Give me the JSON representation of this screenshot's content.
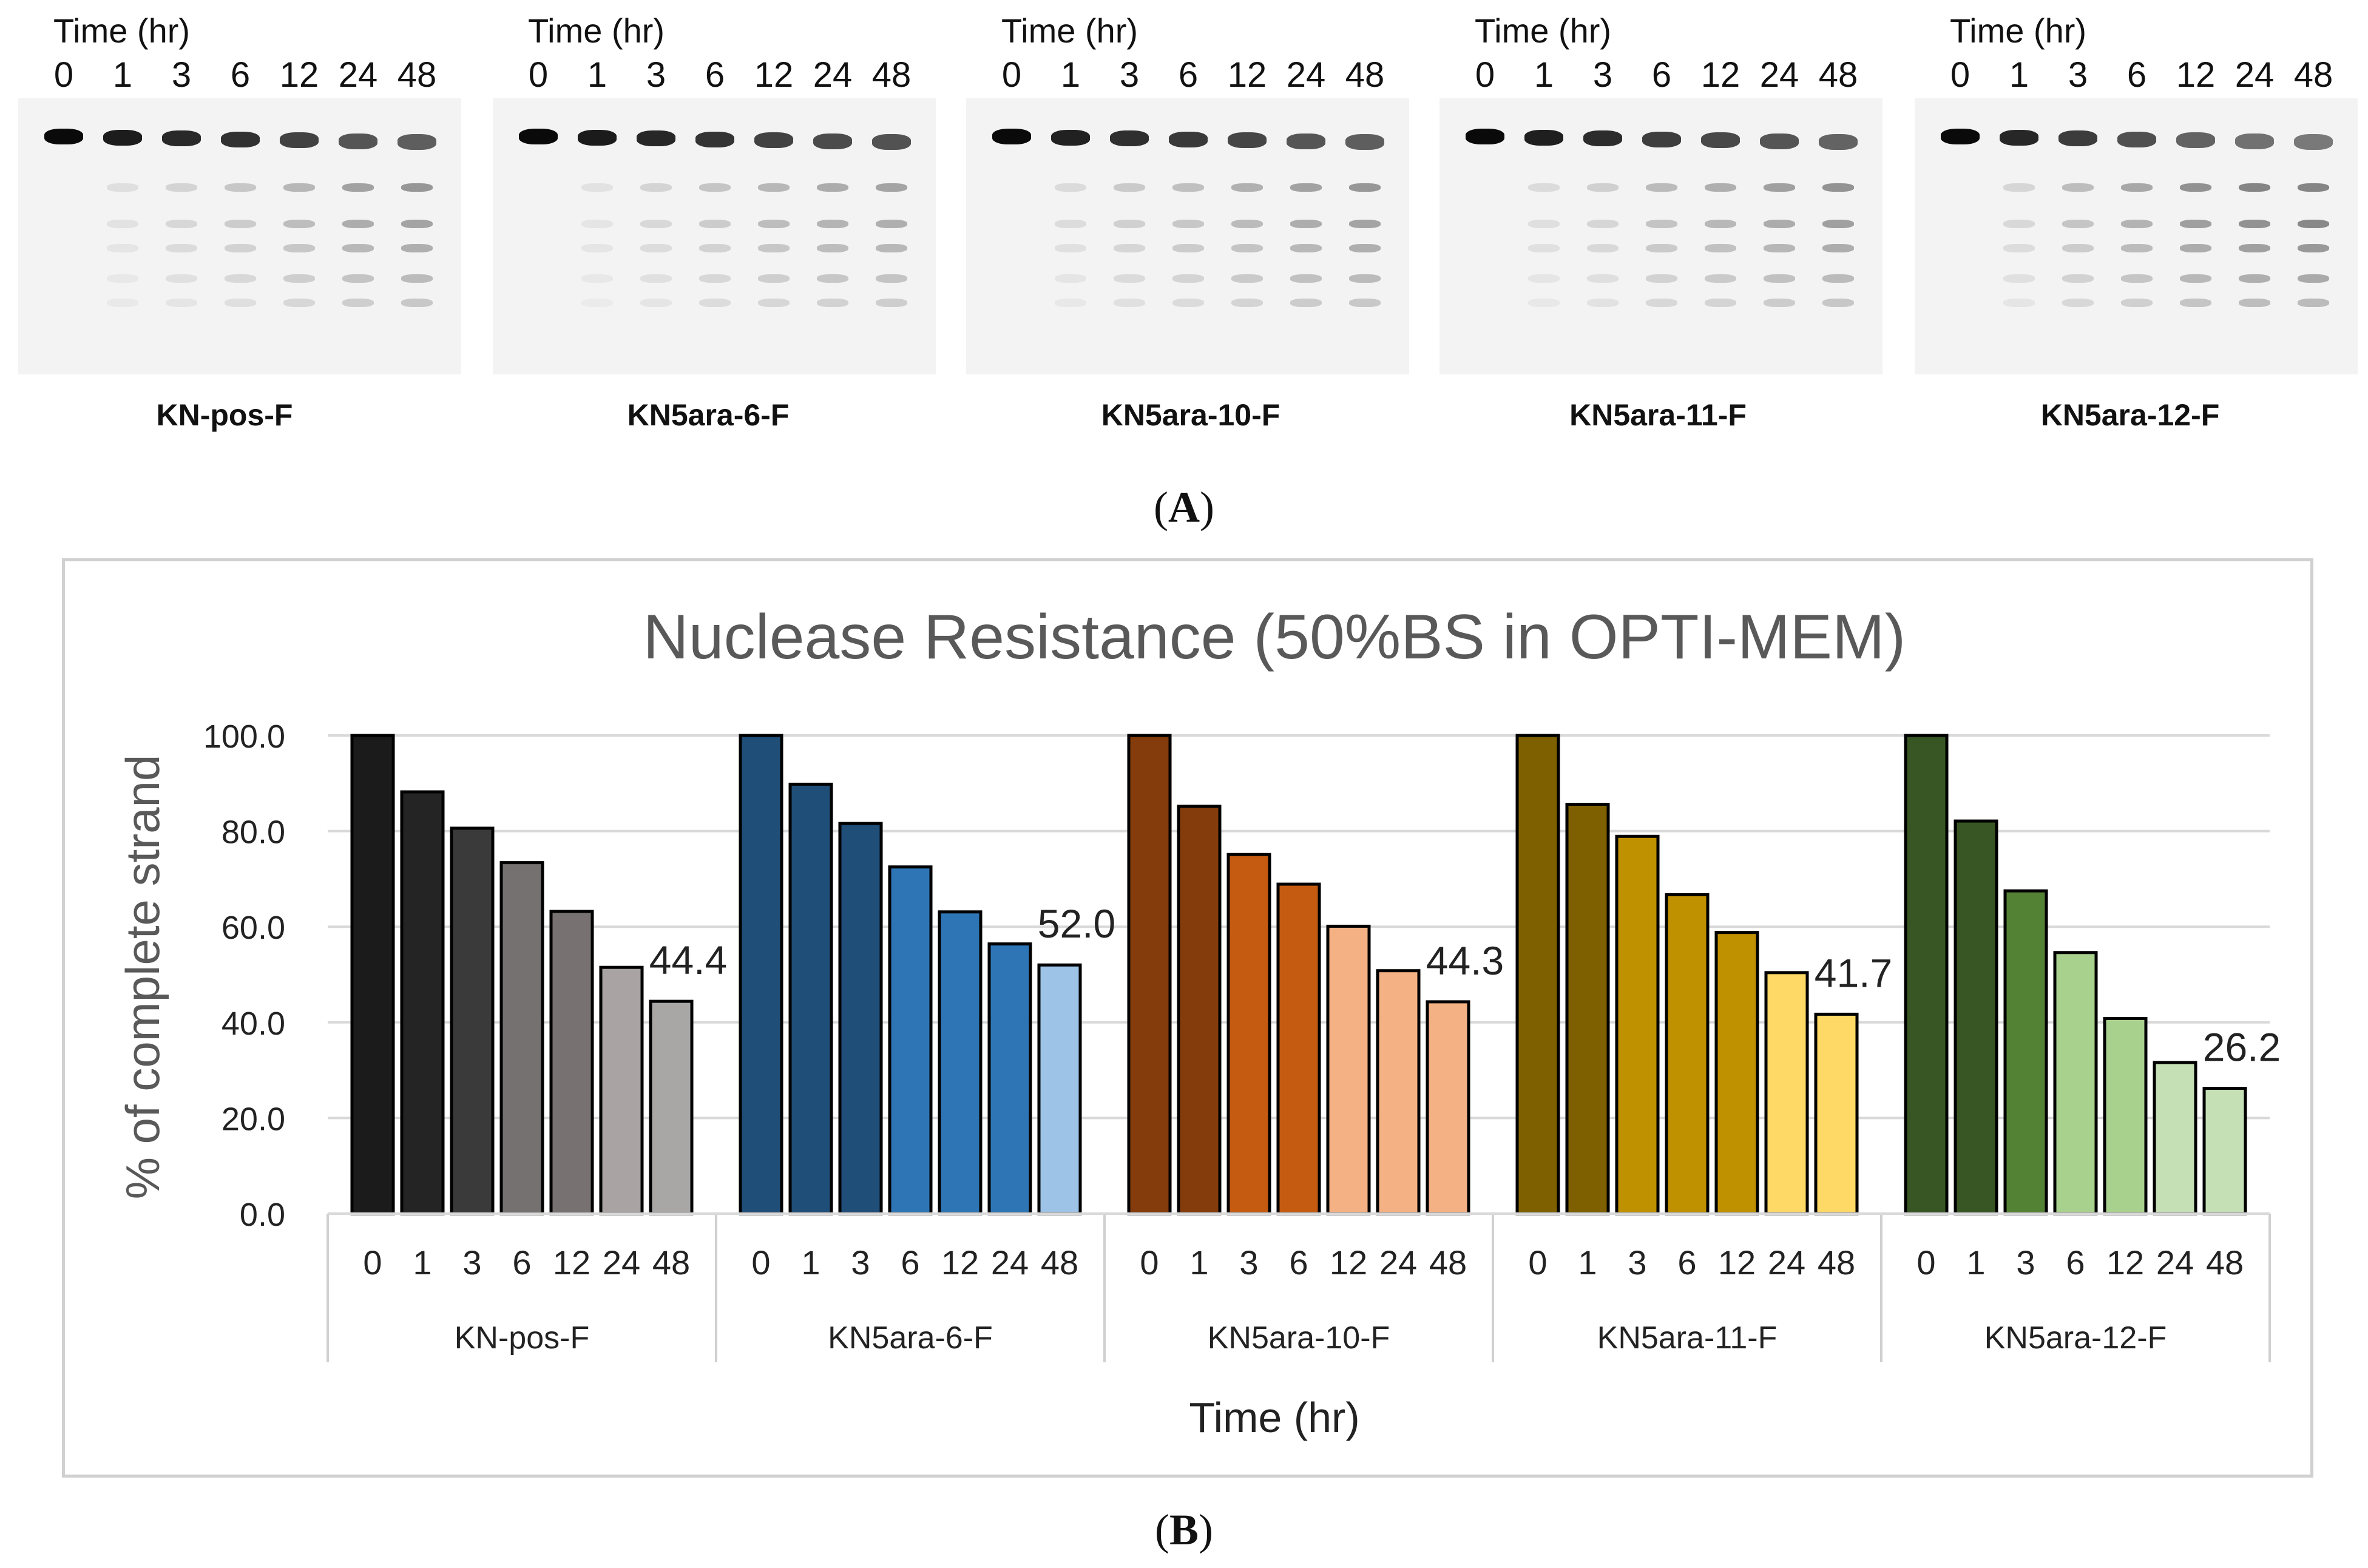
{
  "panel_a": {
    "caption_open": "(",
    "caption_letter": "A",
    "caption_close": ")",
    "time_label": "Time (hr)",
    "gels": [
      {
        "name": "KN-pos-F"
      },
      {
        "name": "KN5ara-6-F"
      },
      {
        "name": "KN5ara-10-F"
      },
      {
        "name": "KN5ara-11-F"
      },
      {
        "name": "KN5ara-12-F"
      }
    ]
  },
  "panel_b": {
    "caption_open": "(",
    "caption_letter": "B",
    "caption_close": ")"
  },
  "chart_data": {
    "type": "bar",
    "title": "Nuclease Resistance (50%BS in OPTI-MEM)",
    "xlabel": "Time (hr)",
    "ylabel": "% of complete strand",
    "ylim": [
      0,
      100
    ],
    "yticks": [
      "0.0",
      "20.0",
      "40.0",
      "60.0",
      "80.0",
      "100.0"
    ],
    "grid": true,
    "categories": [
      "0",
      "1",
      "3",
      "6",
      "12",
      "24",
      "48"
    ],
    "groups": [
      {
        "name": "KN-pos-F",
        "values": [
          100,
          88.2,
          80.6,
          73.4,
          63.2,
          51.5,
          44.4
        ],
        "colors": [
          "#1b1b1b",
          "#242424",
          "#3a3a3a",
          "#767171",
          "#777171",
          "#a9a4a3",
          "#a9a6a6"
        ],
        "data_label": "44.4"
      },
      {
        "name": "KN5ara-6-F",
        "values": [
          100,
          89.8,
          81.6,
          72.5,
          63.1,
          56.4,
          52.0
        ],
        "colors": [
          "#1f4e79",
          "#1f4e79",
          "#1f4e79",
          "#2e75b6",
          "#2e75b6",
          "#2e75b6",
          "#9dc3e6"
        ],
        "data_label": "52.0"
      },
      {
        "name": "KN5ara-10-F",
        "values": [
          100,
          85.2,
          75.1,
          68.9,
          60.1,
          50.8,
          44.3
        ],
        "colors": [
          "#843c0c",
          "#843c0c",
          "#c55a11",
          "#c55a11",
          "#f4b183",
          "#f4b183",
          "#f4b183"
        ],
        "data_label": "44.3"
      },
      {
        "name": "KN5ara-11-F",
        "values": [
          100,
          85.6,
          78.9,
          66.7,
          58.8,
          50.4,
          41.7
        ],
        "colors": [
          "#7f6000",
          "#7f6000",
          "#bf9000",
          "#bf9000",
          "#bf9000",
          "#ffd966",
          "#ffd966"
        ],
        "data_label": "41.7"
      },
      {
        "name": "KN5ara-12-F",
        "values": [
          100,
          82.1,
          67.5,
          54.6,
          40.8,
          31.6,
          26.2
        ],
        "colors": [
          "#375623",
          "#375623",
          "#548235",
          "#a9d18e",
          "#a9d18e",
          "#c5e0b4",
          "#c5e0b4"
        ],
        "data_label": "26.2"
      }
    ]
  }
}
